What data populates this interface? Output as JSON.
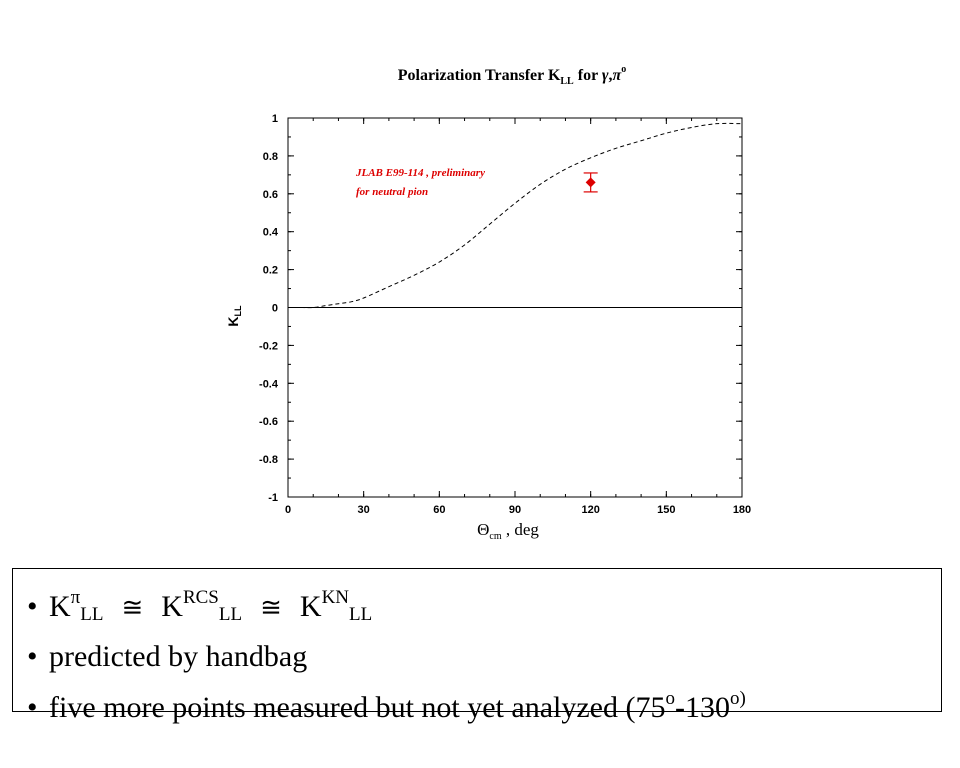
{
  "chart_data": {
    "type": "line",
    "title_parts": {
      "main": "Polarization Transfer K",
      "sub": "LL",
      "mid": " for ",
      "gamma": "γ",
      "comma": ",",
      "pi": "π",
      "sup": "o"
    },
    "xlabel_parts": {
      "theta": "Θ",
      "sub": "cm",
      "rest": " , deg"
    },
    "ylabel_parts": {
      "main": "K",
      "sub": "LL"
    },
    "xlim": [
      0,
      180
    ],
    "ylim": [
      -1,
      1
    ],
    "x_ticks": [
      0,
      30,
      60,
      90,
      120,
      150,
      180
    ],
    "y_ticks": [
      1,
      0.8,
      0.6,
      0.4,
      0.2,
      0,
      -0.2,
      -0.4,
      -0.6,
      -0.8,
      -1
    ],
    "y_tick_labels": [
      "1",
      "0.8",
      "0.6",
      "0.4",
      "0.2",
      "0",
      "-0.2",
      "-0.4",
      "-0.6",
      "-0.8",
      "-1"
    ],
    "reference_line_y": 0,
    "series": [
      {
        "style": "dashed",
        "color": "#000000",
        "x": [
          5,
          10,
          15,
          20,
          25,
          30,
          40,
          50,
          60,
          70,
          80,
          90,
          100,
          110,
          120,
          130,
          140,
          150,
          160,
          170,
          180
        ],
        "y": [
          0.0,
          0.0,
          0.01,
          0.02,
          0.03,
          0.05,
          0.11,
          0.17,
          0.24,
          0.33,
          0.44,
          0.55,
          0.65,
          0.73,
          0.79,
          0.84,
          0.88,
          0.92,
          0.95,
          0.97,
          0.97
        ]
      },
      {
        "style": "marker",
        "color": "#dd0000",
        "x": [
          120
        ],
        "y": [
          0.66
        ],
        "yerr": [
          0.05
        ]
      }
    ],
    "annotation": {
      "line1": "JLAB E99-114 , preliminary",
      "line2": "for neutral pion",
      "color": "#dd0000"
    }
  },
  "bullets": {
    "line1": {
      "k1": "K",
      "pi": "π",
      "ll1": "LL",
      "approx1": "≅",
      "k2": "K",
      "rcs": "RCS",
      "ll2": "LL",
      "approx2": "≅",
      "k3": "K",
      "kn": "KN",
      "ll3": "LL"
    },
    "line2": "predicted by handbag",
    "line3": {
      "text": "five more points measured but not yet analyzed (75",
      "o1": "o",
      "dash": "-130",
      "o2": "o)"
    }
  }
}
